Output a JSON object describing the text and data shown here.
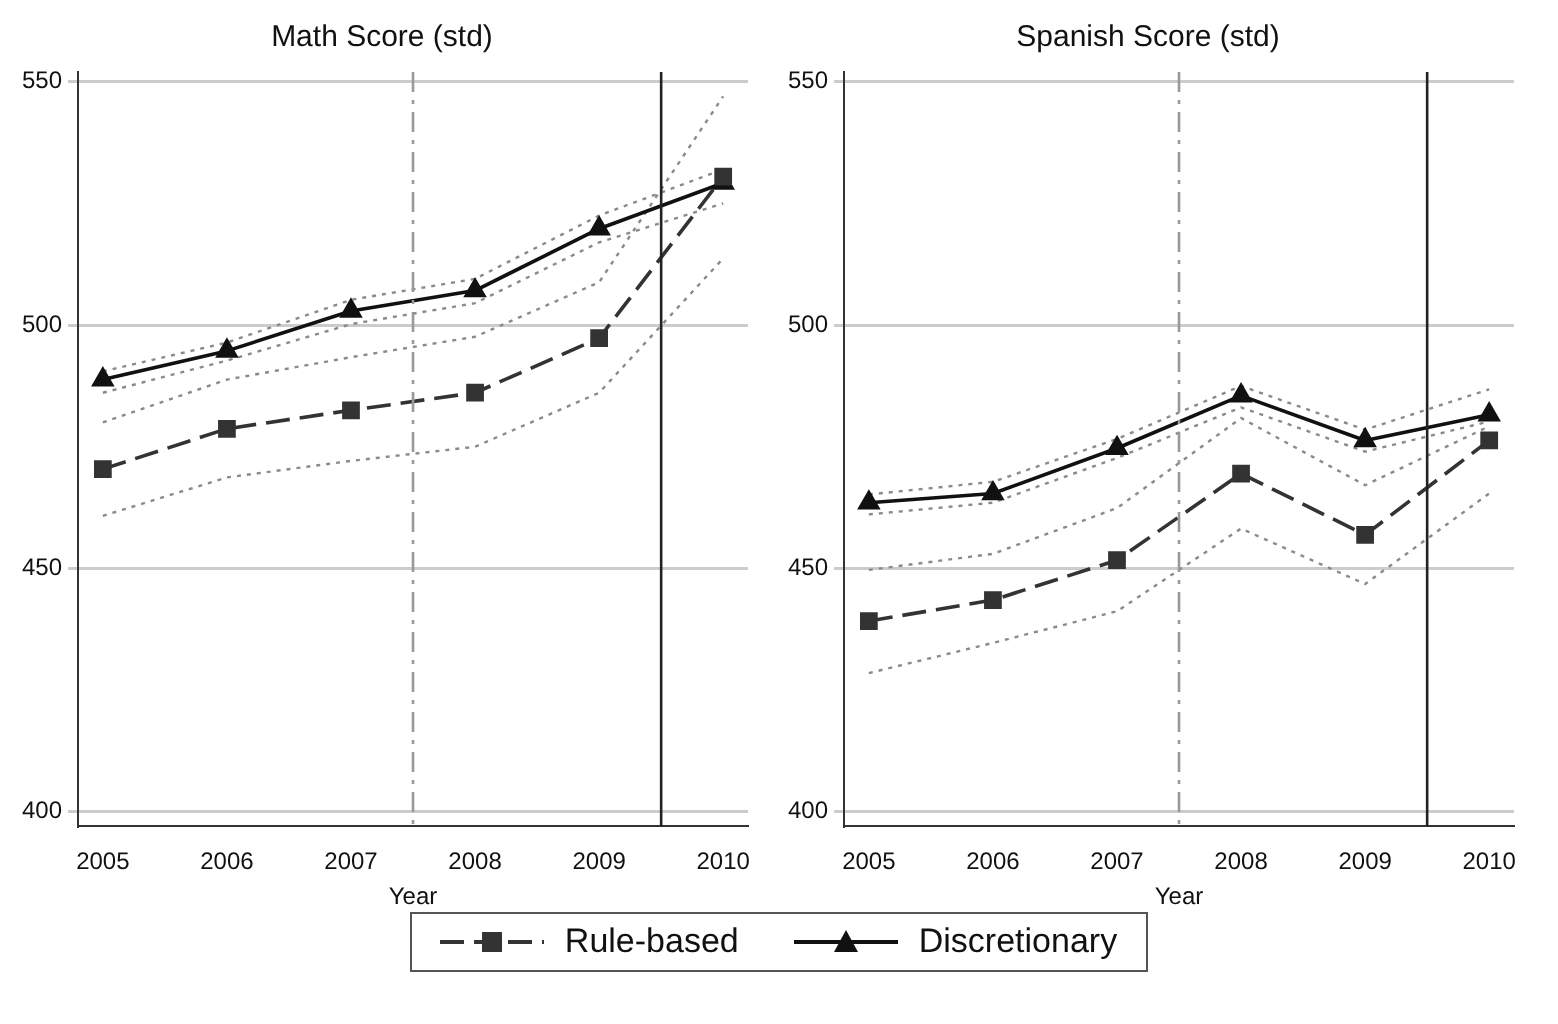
{
  "chart_data": [
    {
      "type": "line",
      "title": "Math Score (std)",
      "xlabel": "Year",
      "x": [
        2005,
        2006,
        2007,
        2008,
        2009,
        2010
      ],
      "xlim": [
        2004.8,
        2010.2
      ],
      "xticks": [
        2005,
        2006,
        2007,
        2008,
        2009,
        2010
      ],
      "ylim": [
        397,
        552
      ],
      "yticks": [
        400,
        450,
        500,
        550
      ],
      "grid": "y",
      "legend": "bottom",
      "series": [
        {
          "name": "Rule-based",
          "color": "#333333",
          "marker": "square",
          "line_style": "dashed",
          "values": [
            470.4,
            478.7,
            482.5,
            486.1,
            497.3,
            530.5
          ]
        },
        {
          "name": "Discretionary",
          "color": "#111111",
          "marker": "triangle",
          "line_style": "solid",
          "values": [
            488.8,
            494.7,
            502.9,
            507.1,
            519.8,
            529.2
          ]
        },
        {
          "color": "#8a8a8a",
          "marker": "none",
          "line_style": "dotted",
          "values": [
            460.8,
            468.7,
            472.1,
            475,
            486.1,
            513.7
          ]
        },
        {
          "color": "#8a8a8a",
          "marker": "none",
          "line_style": "dotted",
          "values": [
            480,
            488.8,
            493.4,
            497.6,
            508.8,
            547
          ]
        },
        {
          "color": "#8a8a8a",
          "marker": "none",
          "line_style": "dotted",
          "values": [
            486.1,
            492.7,
            500.2,
            504.5,
            517,
            525
          ]
        },
        {
          "color": "#8a8a8a",
          "marker": "none",
          "line_style": "dotted",
          "values": [
            490.5,
            496.4,
            505.2,
            509.5,
            522.5,
            532
          ]
        }
      ],
      "ref_lines": [
        {
          "axis": "x",
          "value": 2007.5,
          "color": "#999999",
          "line_style": "dashed"
        },
        {
          "axis": "x",
          "value": 2009.5,
          "color": "#222222",
          "line_style": "solid"
        }
      ]
    },
    {
      "type": "line",
      "title": "Spanish Score (std)",
      "xlabel": "Year",
      "x": [
        2005,
        2006,
        2007,
        2008,
        2009,
        2010
      ],
      "xlim": [
        2004.8,
        2010.2
      ],
      "xticks": [
        2005,
        2006,
        2007,
        2008,
        2009,
        2010
      ],
      "ylim": [
        397,
        552
      ],
      "yticks": [
        400,
        450,
        500,
        550
      ],
      "grid": "y",
      "legend": "bottom",
      "series": [
        {
          "name": "Rule-based",
          "color": "#333333",
          "marker": "square",
          "line_style": "dashed",
          "values": [
            439.2,
            443.5,
            451.7,
            469.5,
            456.9,
            476.3
          ]
        },
        {
          "name": "Discretionary",
          "color": "#111111",
          "marker": "triangle",
          "line_style": "solid",
          "values": [
            463.5,
            465.4,
            474.7,
            485.5,
            476.3,
            481.6
          ]
        },
        {
          "color": "#8a8a8a",
          "marker": "none",
          "line_style": "dotted",
          "values": [
            428.5,
            434.7,
            441.2,
            458.2,
            446.8,
            465.4
          ]
        },
        {
          "color": "#8a8a8a",
          "marker": "none",
          "line_style": "dotted",
          "values": [
            449.7,
            453,
            462.4,
            480.9,
            467.1,
            479.2
          ]
        },
        {
          "color": "#8a8a8a",
          "marker": "none",
          "line_style": "dotted",
          "values": [
            461.1,
            463.5,
            472.7,
            483.1,
            474,
            480.2
          ]
        },
        {
          "color": "#8a8a8a",
          "marker": "none",
          "line_style": "dotted",
          "values": [
            465.2,
            467.8,
            476.6,
            487.5,
            478.5,
            486.8
          ]
        }
      ],
      "ref_lines": [
        {
          "axis": "x",
          "value": 2007.5,
          "color": "#999999",
          "line_style": "dashed"
        },
        {
          "axis": "x",
          "value": 2009.5,
          "color": "#222222",
          "line_style": "solid"
        }
      ]
    }
  ]
}
